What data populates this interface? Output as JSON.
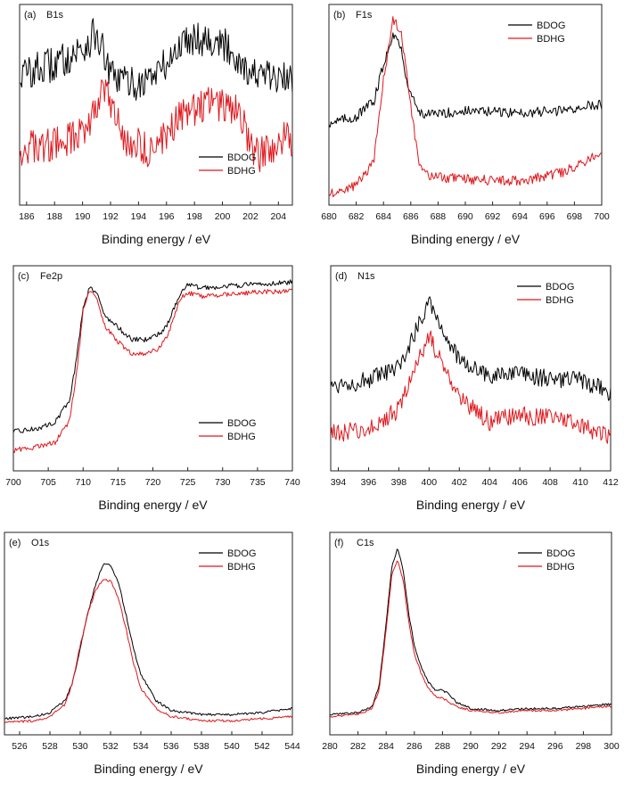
{
  "colors": {
    "BDOG": "#000000",
    "BDHG": "#e0161b"
  },
  "chart_data": [
    {
      "panel": "(a)",
      "type": "line",
      "title": "B1s",
      "xlabel": "Binding energy / eV",
      "ylabel": "",
      "xlim": [
        185.5,
        205
      ],
      "ylim": [
        0,
        1
      ],
      "xticks": [
        186,
        188,
        190,
        192,
        194,
        196,
        198,
        200,
        202,
        204
      ],
      "legend": "bottom-right",
      "grid": false,
      "noise": 0.09,
      "series": [
        {
          "name": "BDOG",
          "x": [
            185.5,
            188,
            190,
            191,
            192,
            194,
            196,
            197.5,
            199,
            200.5,
            202,
            203.5,
            205
          ],
          "y": [
            0.65,
            0.7,
            0.78,
            0.86,
            0.64,
            0.6,
            0.7,
            0.84,
            0.83,
            0.78,
            0.66,
            0.63,
            0.62
          ]
        },
        {
          "name": "BDHG",
          "x": [
            185.5,
            188,
            190,
            191.5,
            193,
            195,
            197,
            199,
            201,
            202.5,
            204,
            205
          ],
          "y": [
            0.28,
            0.3,
            0.36,
            0.58,
            0.32,
            0.27,
            0.44,
            0.52,
            0.47,
            0.24,
            0.32,
            0.33
          ]
        }
      ]
    },
    {
      "panel": "(b)",
      "type": "line",
      "title": "F1s",
      "xlabel": "Binding energy / eV",
      "ylabel": "",
      "xlim": [
        680,
        700
      ],
      "ylim": [
        0,
        1
      ],
      "xticks": [
        680,
        682,
        684,
        686,
        688,
        690,
        692,
        694,
        696,
        698,
        700
      ],
      "legend": "top-right",
      "grid": false,
      "noise": 0.025,
      "series": [
        {
          "name": "BDOG",
          "x": [
            680,
            682,
            683.3,
            684,
            684.7,
            685.2,
            685.8,
            686.5,
            687.3,
            690,
            694,
            697,
            699.5
          ],
          "y": [
            0.41,
            0.44,
            0.52,
            0.7,
            0.86,
            0.8,
            0.6,
            0.47,
            0.45,
            0.47,
            0.46,
            0.47,
            0.5
          ]
        },
        {
          "name": "BDHG",
          "x": [
            680,
            682,
            683.3,
            684,
            684.7,
            685.3,
            686,
            686.6,
            687.5,
            690,
            694,
            697,
            699.5
          ],
          "y": [
            0.06,
            0.1,
            0.22,
            0.62,
            0.93,
            0.86,
            0.5,
            0.2,
            0.14,
            0.13,
            0.12,
            0.16,
            0.24
          ]
        }
      ]
    },
    {
      "panel": "(c)",
      "type": "line",
      "title": "Fe2p",
      "xlabel": "Binding energy / eV",
      "ylabel": "",
      "xlim": [
        700,
        740
      ],
      "ylim": [
        0,
        1
      ],
      "xticks": [
        700,
        705,
        710,
        715,
        720,
        725,
        730,
        735,
        740
      ],
      "legend": "bottom-right",
      "grid": false,
      "noise": 0.012,
      "series": [
        {
          "name": "BDOG",
          "x": [
            700,
            704,
            706,
            708,
            709,
            710,
            711,
            712,
            713,
            715,
            717,
            719,
            721,
            722,
            723,
            724,
            725,
            727,
            730,
            735,
            740
          ],
          "y": [
            0.19,
            0.21,
            0.24,
            0.34,
            0.53,
            0.8,
            0.9,
            0.87,
            0.76,
            0.7,
            0.64,
            0.64,
            0.67,
            0.71,
            0.79,
            0.87,
            0.91,
            0.89,
            0.9,
            0.91,
            0.92
          ]
        },
        {
          "name": "BDHG",
          "x": [
            700,
            704,
            706,
            708,
            709,
            710,
            711,
            712,
            713,
            715,
            717,
            719,
            721,
            722,
            723,
            724,
            725,
            727,
            730,
            735,
            740
          ],
          "y": [
            0.1,
            0.12,
            0.14,
            0.24,
            0.45,
            0.78,
            0.89,
            0.84,
            0.71,
            0.63,
            0.57,
            0.57,
            0.6,
            0.65,
            0.75,
            0.84,
            0.87,
            0.85,
            0.86,
            0.87,
            0.88
          ]
        }
      ]
    },
    {
      "panel": "(d)",
      "type": "line",
      "title": "N1s",
      "xlabel": "Binding energy / eV",
      "ylabel": "",
      "xlim": [
        393.5,
        412
      ],
      "ylim": [
        0,
        1
      ],
      "xticks": [
        394,
        396,
        398,
        400,
        402,
        404,
        406,
        408,
        410,
        412
      ],
      "legend": "top-right",
      "grid": false,
      "noise": 0.045,
      "series": [
        {
          "name": "BDOG",
          "x": [
            393.5,
            396,
            398,
            399,
            400,
            401,
            402,
            404,
            406,
            408,
            410,
            412
          ],
          "y": [
            0.42,
            0.44,
            0.5,
            0.66,
            0.84,
            0.67,
            0.54,
            0.46,
            0.47,
            0.45,
            0.44,
            0.38
          ]
        },
        {
          "name": "BDHG",
          "x": [
            393.5,
            396,
            398,
            399,
            400,
            401,
            402,
            404,
            406,
            408,
            410,
            412
          ],
          "y": [
            0.18,
            0.2,
            0.3,
            0.5,
            0.66,
            0.5,
            0.36,
            0.24,
            0.27,
            0.26,
            0.22,
            0.17
          ]
        }
      ]
    },
    {
      "panel": "(e)",
      "type": "line",
      "title": "O1s",
      "xlabel": "Binding energy / eV",
      "ylabel": "",
      "xlim": [
        525,
        544
      ],
      "ylim": [
        0,
        1
      ],
      "xticks": [
        526,
        528,
        530,
        532,
        534,
        536,
        538,
        540,
        542,
        544
      ],
      "legend": "top-right",
      "grid": false,
      "noise": 0.006,
      "series": [
        {
          "name": "BDOG",
          "x": [
            525,
            527,
            528,
            529,
            529.5,
            530,
            530.5,
            531,
            531.5,
            532,
            532.5,
            533,
            533.5,
            534,
            535,
            536,
            538,
            540,
            542,
            544
          ],
          "y": [
            0.08,
            0.09,
            0.11,
            0.17,
            0.26,
            0.43,
            0.6,
            0.74,
            0.84,
            0.84,
            0.76,
            0.6,
            0.43,
            0.3,
            0.17,
            0.12,
            0.1,
            0.1,
            0.11,
            0.13
          ]
        },
        {
          "name": "BDHG",
          "x": [
            525,
            527,
            528,
            529,
            529.5,
            530,
            530.5,
            531,
            531.5,
            532,
            532.5,
            533,
            533.5,
            534,
            535,
            536,
            538,
            540,
            542,
            544
          ],
          "y": [
            0.06,
            0.07,
            0.09,
            0.15,
            0.26,
            0.44,
            0.6,
            0.71,
            0.77,
            0.76,
            0.68,
            0.53,
            0.36,
            0.23,
            0.13,
            0.09,
            0.07,
            0.07,
            0.08,
            0.09
          ]
        }
      ]
    },
    {
      "panel": "(f)",
      "type": "line",
      "title": "C1s",
      "xlabel": "Binding energy / eV",
      "ylabel": "",
      "xlim": [
        280,
        300
      ],
      "ylim": [
        0,
        1
      ],
      "xticks": [
        280,
        282,
        284,
        286,
        288,
        290,
        292,
        294,
        296,
        298,
        300
      ],
      "legend": "top-right",
      "grid": false,
      "noise": 0.005,
      "series": [
        {
          "name": "BDOG",
          "x": [
            280,
            282,
            283,
            283.5,
            284,
            284.4,
            284.8,
            285.2,
            285.6,
            286,
            286.5,
            287,
            287.5,
            288,
            288.5,
            289,
            290,
            292,
            294,
            296,
            298,
            299.5
          ],
          "y": [
            0.1,
            0.11,
            0.14,
            0.24,
            0.55,
            0.83,
            0.92,
            0.82,
            0.6,
            0.44,
            0.33,
            0.26,
            0.22,
            0.22,
            0.2,
            0.16,
            0.13,
            0.12,
            0.13,
            0.13,
            0.14,
            0.15
          ]
        },
        {
          "name": "BDHG",
          "x": [
            280,
            282,
            283,
            283.5,
            284,
            284.4,
            284.8,
            285.2,
            285.6,
            286,
            286.5,
            287,
            287.5,
            288,
            288.5,
            289,
            290,
            292,
            294,
            296,
            298,
            299.5
          ],
          "y": [
            0.09,
            0.1,
            0.13,
            0.22,
            0.52,
            0.79,
            0.86,
            0.77,
            0.56,
            0.4,
            0.3,
            0.23,
            0.19,
            0.18,
            0.16,
            0.14,
            0.12,
            0.11,
            0.12,
            0.12,
            0.13,
            0.14
          ]
        }
      ]
    }
  ]
}
